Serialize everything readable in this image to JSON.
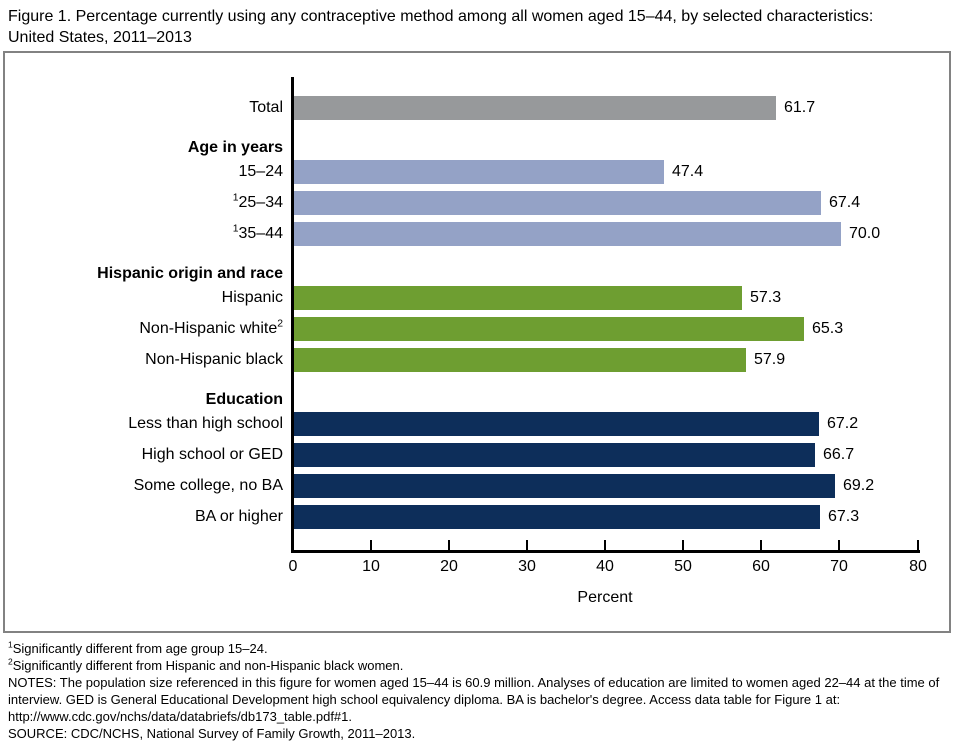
{
  "figure": {
    "title_lines": [
      "Figure 1. Percentage currently using any contraceptive method among all women aged 15–44, by selected characteristics:",
      "United States, 2011–2013"
    ]
  },
  "chart_data": {
    "type": "bar",
    "orientation": "horizontal",
    "title": "Figure 1. Percentage currently using any contraceptive method among all women aged 15–44, by selected characteristics: United States, 2011–2013",
    "xlabel": "Percent",
    "ylabel": "",
    "xlim": [
      0,
      80
    ],
    "xticks": [
      "0",
      "10",
      "20",
      "30",
      "40",
      "50",
      "60",
      "70",
      "80"
    ],
    "grid": false,
    "legend": "none",
    "axis_color": "#000000",
    "groups": [
      {
        "id": "total",
        "header": "",
        "color": "#97999b",
        "bars": [
          {
            "label": "Total",
            "sup_prefix": "",
            "sup_suffix": "",
            "value": 61.7,
            "value_label": "61.7"
          }
        ]
      },
      {
        "id": "age",
        "header": "Age in years",
        "color": "#94a2c6",
        "bars": [
          {
            "label": "15–24",
            "sup_prefix": "",
            "sup_suffix": "",
            "value": 47.4,
            "value_label": "47.4"
          },
          {
            "label": "25–34",
            "sup_prefix": "1",
            "sup_suffix": "",
            "value": 67.4,
            "value_label": "67.4"
          },
          {
            "label": "35–44",
            "sup_prefix": "1",
            "sup_suffix": "",
            "value": 70.0,
            "value_label": "70.0"
          }
        ]
      },
      {
        "id": "hispanic-origin-race",
        "header": "Hispanic origin and race",
        "color": "#6e9e31",
        "bars": [
          {
            "label": "Hispanic",
            "sup_prefix": "",
            "sup_suffix": "",
            "value": 57.3,
            "value_label": "57.3"
          },
          {
            "label": "Non-Hispanic white",
            "sup_prefix": "",
            "sup_suffix": "2",
            "value": 65.3,
            "value_label": "65.3"
          },
          {
            "label": "Non-Hispanic black",
            "sup_prefix": "",
            "sup_suffix": "",
            "value": 57.9,
            "value_label": "57.9"
          }
        ]
      },
      {
        "id": "education",
        "header": "Education",
        "color": "#0d2e5a",
        "bars": [
          {
            "label": "Less than high school",
            "sup_prefix": "",
            "sup_suffix": "",
            "value": 67.2,
            "value_label": "67.2"
          },
          {
            "label": "High school or GED",
            "sup_prefix": "",
            "sup_suffix": "",
            "value": 66.7,
            "value_label": "66.7"
          },
          {
            "label": "Some college, no BA",
            "sup_prefix": "",
            "sup_suffix": "",
            "value": 69.2,
            "value_label": "69.2"
          },
          {
            "label": "BA or higher",
            "sup_prefix": "",
            "sup_suffix": "",
            "value": 67.3,
            "value_label": "67.3"
          }
        ]
      }
    ]
  },
  "footnotes": [
    {
      "sup": "1",
      "text": "Significantly different from age group 15–24."
    },
    {
      "sup": "2",
      "text": "Significantly different from Hispanic and non-Hispanic black women."
    },
    {
      "sup": "",
      "text": "NOTES: The population size referenced in this figure for women aged 15–44 is 60.9 million. Analyses of education are limited to women aged 22–44 at the time of interview. GED is General Educational Development high school equivalency diploma. BA is bachelor's degree. Access data table for Figure 1 at: http://www.cdc.gov/nchs/data/databriefs/db173_table.pdf#1."
    },
    {
      "sup": "",
      "text": "SOURCE: CDC/NCHS, National Survey of Family Growth, 2011–2013."
    }
  ]
}
